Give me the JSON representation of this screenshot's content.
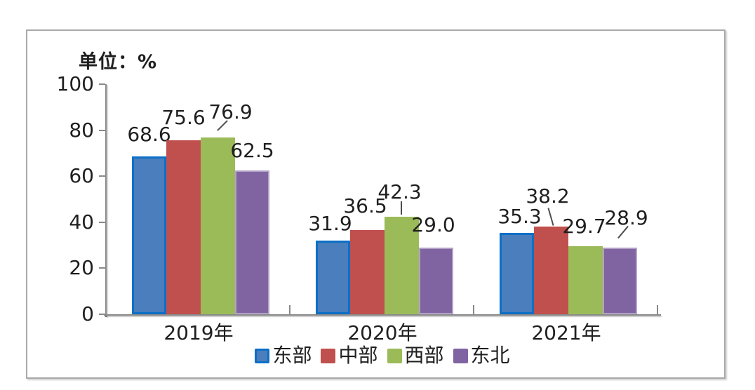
{
  "chart": {
    "unit_label": "单位：%"
  },
  "chart_data": {
    "type": "bar",
    "title": "单位：%",
    "categories": [
      "2019年",
      "2020年",
      "2021年"
    ],
    "series": [
      {
        "key": "east",
        "name": "东部",
        "color": "#4a7ebd",
        "border_color": "#0d6fc6",
        "swatch_border": "#0d6fc6",
        "values": [
          68.6,
          31.9,
          35.3
        ]
      },
      {
        "key": "central",
        "name": "中部",
        "color": "#c0504d",
        "values": [
          75.6,
          36.5,
          38.2
        ]
      },
      {
        "key": "west",
        "name": "西部",
        "color": "#9bbb59",
        "values": [
          76.9,
          42.3,
          29.7
        ]
      },
      {
        "key": "northeast",
        "name": "东北",
        "color": "#8064a2",
        "border_color": "#b3a2c7",
        "values": [
          62.5,
          29.0,
          28.9
        ]
      }
    ],
    "data_labels": [
      "68.6",
      "75.6",
      "76.9",
      "62.5",
      "31.9",
      "36.5",
      "42.3",
      "29.0",
      "35.3",
      "38.2",
      "29.7",
      "28.9"
    ],
    "xlabel": "",
    "ylabel": "",
    "ylim": [
      0,
      100
    ],
    "yticks": [
      0,
      20,
      40,
      60,
      80,
      100
    ],
    "grid": false,
    "legend_position": "bottom",
    "axis_color": "#8a8a8a",
    "text_color": "#1f1f1f"
  }
}
